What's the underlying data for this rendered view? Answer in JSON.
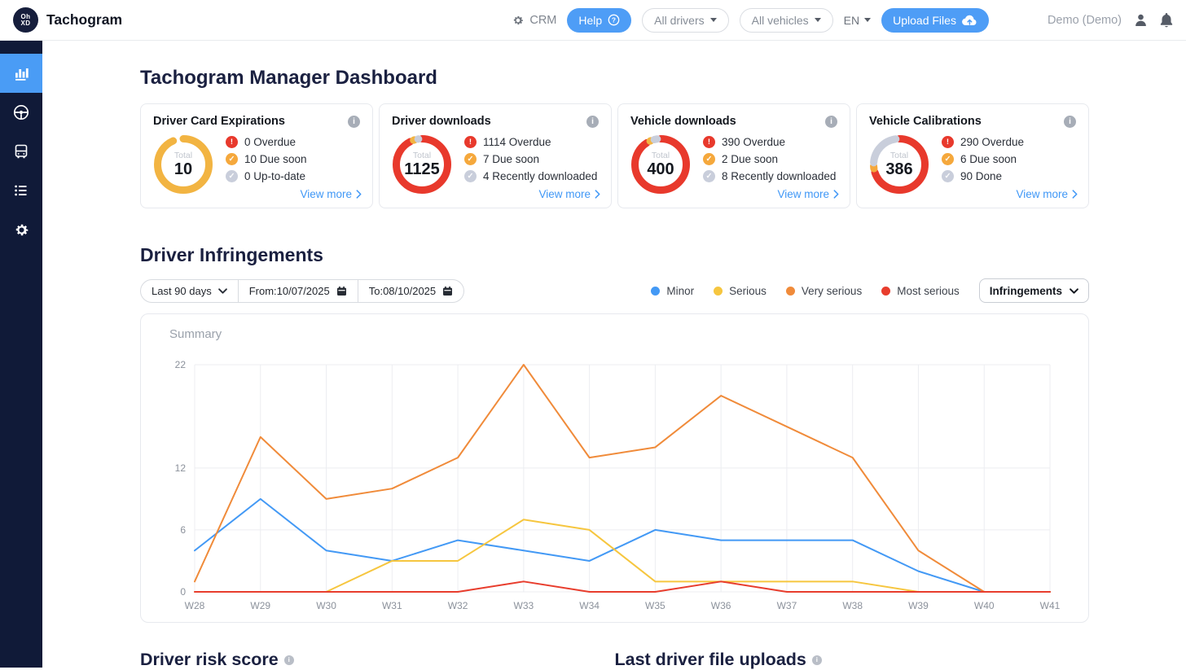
{
  "header": {
    "brand": "Tachogram",
    "crm_label": "CRM",
    "help_label": "Help",
    "drivers_filter": "All drivers",
    "vehicles_filter": "All vehicles",
    "language": "EN",
    "upload_label": "Upload Files",
    "user": "Demo (Demo)"
  },
  "sidebar": {
    "items": [
      {
        "icon": "bar-chart-icon",
        "name": "dashboard",
        "active": true
      },
      {
        "icon": "steering-wheel-icon",
        "name": "drivers",
        "active": false
      },
      {
        "icon": "bus-icon",
        "name": "vehicles",
        "active": false
      },
      {
        "icon": "list-icon",
        "name": "reports",
        "active": false
      },
      {
        "icon": "gear-icon",
        "name": "settings",
        "active": false
      }
    ]
  },
  "page_title": "Tachogram Manager Dashboard",
  "stat_cards": [
    {
      "title": "Driver Card Expirations",
      "total_label": "Total",
      "total": "10",
      "items": [
        {
          "glyph": "!",
          "color": "#e8392c",
          "text": "0 Overdue"
        },
        {
          "glyph": "✓",
          "color": "#f5a83c",
          "text": "10 Due soon"
        },
        {
          "glyph": "✓",
          "color": "#c9cedb",
          "text": "0 Up-to-date"
        }
      ],
      "view_more": "View more",
      "donut": {
        "segments": [
          {
            "color": "#f2b442",
            "value": 10
          }
        ]
      }
    },
    {
      "title": "Driver downloads",
      "total_label": "Total",
      "total": "1125",
      "items": [
        {
          "glyph": "!",
          "color": "#e8392c",
          "text": "1114 Overdue"
        },
        {
          "glyph": "✓",
          "color": "#f5a83c",
          "text": "7 Due soon"
        },
        {
          "glyph": "✓",
          "color": "#c9cedb",
          "text": "4 Recently downloaded"
        }
      ],
      "view_more": "View more",
      "donut": {
        "segments": [
          {
            "color": "#e8392c",
            "value": 1114
          },
          {
            "color": "#f2b442",
            "value": 7
          },
          {
            "color": "#c9cedb",
            "value": 4
          }
        ]
      }
    },
    {
      "title": "Vehicle downloads",
      "total_label": "Total",
      "total": "400",
      "items": [
        {
          "glyph": "!",
          "color": "#e8392c",
          "text": "390 Overdue"
        },
        {
          "glyph": "✓",
          "color": "#f5a83c",
          "text": "2 Due soon"
        },
        {
          "glyph": "✓",
          "color": "#c9cedb",
          "text": "8 Recently downloaded"
        }
      ],
      "view_more": "View more",
      "donut": {
        "segments": [
          {
            "color": "#e8392c",
            "value": 390
          },
          {
            "color": "#f2b442",
            "value": 2
          },
          {
            "color": "#c9cedb",
            "value": 8
          }
        ]
      }
    },
    {
      "title": "Vehicle Calibrations",
      "total_label": "Total",
      "total": "386",
      "items": [
        {
          "glyph": "!",
          "color": "#e8392c",
          "text": "290 Overdue"
        },
        {
          "glyph": "✓",
          "color": "#f5a83c",
          "text": "6 Due soon"
        },
        {
          "glyph": "✓",
          "color": "#c9cedb",
          "text": "90 Done"
        }
      ],
      "view_more": "View more",
      "donut": {
        "segments": [
          {
            "color": "#e8392c",
            "value": 290
          },
          {
            "color": "#f5a83c",
            "value": 6
          },
          {
            "color": "#c9cedb",
            "value": 90
          }
        ]
      }
    }
  ],
  "infringements": {
    "title": "Driver Infringements",
    "range_select": "Last 90 days",
    "from_label": "From:10/07/2025",
    "to_label": "To:08/10/2025",
    "legend": [
      {
        "label": "Minor"
      },
      {
        "label": "Serious"
      },
      {
        "label": "Very serious"
      },
      {
        "label": "Most serious"
      }
    ],
    "type_button": "Infringements",
    "chart_label": "Summary"
  },
  "chart_data": {
    "type": "line",
    "title": "Summary",
    "x": [
      "W28",
      "W29",
      "W30",
      "W31",
      "W32",
      "W33",
      "W34",
      "W35",
      "W36",
      "W37",
      "W38",
      "W39",
      "W40",
      "W41"
    ],
    "series": [
      {
        "name": "Minor",
        "color": "#4399f5",
        "values": [
          4,
          9,
          4,
          3,
          5,
          4,
          3,
          6,
          5,
          5,
          5,
          2,
          0,
          0
        ]
      },
      {
        "name": "Serious",
        "color": "#f6c63f",
        "values": [
          0,
          0,
          0,
          3,
          3,
          7,
          6,
          1,
          1,
          1,
          1,
          0,
          0,
          0
        ]
      },
      {
        "name": "Very serious",
        "color": "#f08b3a",
        "values": [
          1,
          15,
          9,
          10,
          13,
          22,
          13,
          14,
          19,
          16,
          13,
          4,
          0,
          0
        ]
      },
      {
        "name": "Most serious",
        "color": "#e83d2d",
        "values": [
          0,
          0,
          0,
          0,
          0,
          1,
          0,
          0,
          1,
          0,
          0,
          0,
          0,
          0
        ]
      }
    ],
    "ylim": [
      0,
      22
    ],
    "yticks": [
      0,
      6,
      12,
      22
    ],
    "grid": true,
    "legend_position": "top-right"
  },
  "bottom_sections": {
    "risk_title": "Driver risk score",
    "uploads_title": "Last driver file uploads"
  },
  "colors": {
    "accent_blue": "#4e9df6",
    "sidebar_bg": "#101a38",
    "sidebar_active": "#4a9cf5",
    "link_blue": "#3f97f6",
    "overdue_red": "#e8392c",
    "due_soon_yellow": "#f5a83c",
    "neutral_gray": "#c9cedb"
  }
}
